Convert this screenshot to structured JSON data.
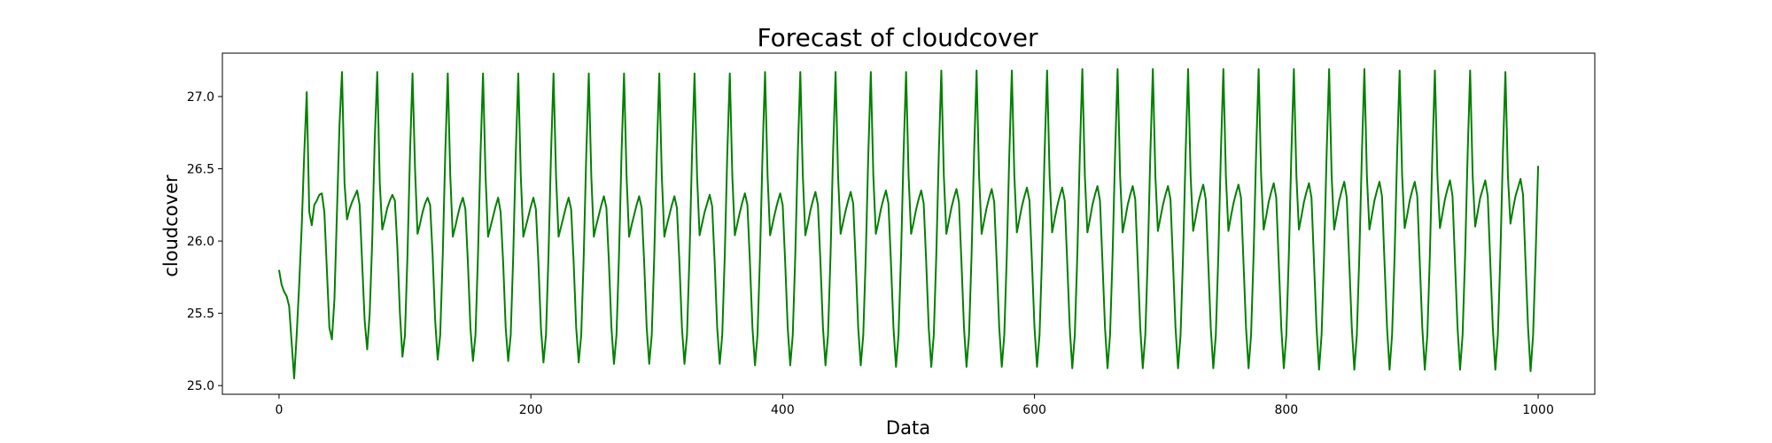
{
  "chart_data": {
    "type": "line",
    "title": "Forecast of cloudcover",
    "xlabel": "Data",
    "ylabel": "cloudcover",
    "xlim": [
      -45,
      1045
    ],
    "ylim": [
      24.94,
      27.3
    ],
    "xticks": [
      0,
      200,
      400,
      600,
      800,
      1000
    ],
    "xtick_labels": [
      "0",
      "200",
      "400",
      "600",
      "800",
      "1000"
    ],
    "yticks": [
      25.0,
      25.5,
      26.0,
      26.5,
      27.0
    ],
    "ytick_labels": [
      "25.0",
      "25.5",
      "26.0",
      "26.5",
      "27.0"
    ],
    "grid": false,
    "legend": false,
    "series": [
      {
        "color": "#008000",
        "x": [
          0,
          2,
          4,
          6,
          8,
          10,
          12,
          14,
          16,
          18,
          20,
          22,
          24,
          26,
          28,
          30,
          32,
          34,
          36,
          38,
          40,
          42,
          44,
          46,
          48,
          50,
          52,
          54,
          56,
          58,
          60,
          62,
          64,
          66,
          68,
          70,
          72,
          74,
          76,
          78,
          80,
          82,
          84,
          86,
          88,
          90,
          92,
          94,
          96,
          98,
          100,
          102,
          104,
          106,
          108,
          110,
          112,
          114,
          116,
          118,
          120,
          122,
          124,
          126,
          128,
          130,
          132,
          134,
          136,
          138,
          140,
          142,
          144,
          146,
          148,
          150,
          152,
          154,
          156,
          158,
          160,
          162,
          164,
          166,
          168,
          170,
          172,
          174,
          176,
          178,
          180,
          182,
          184,
          186,
          188,
          190,
          192,
          194,
          196,
          198,
          200,
          202,
          204,
          206,
          208,
          210,
          212,
          214,
          216,
          218,
          220,
          222,
          224,
          226,
          228,
          230,
          232,
          234,
          236,
          238,
          240,
          242,
          244,
          246,
          248,
          250,
          252,
          254,
          256,
          258,
          260,
          262,
          264,
          266,
          268,
          270,
          272,
          274,
          276,
          278,
          280,
          282,
          284,
          286,
          288,
          290,
          292,
          294,
          296,
          298,
          300,
          302,
          304,
          306,
          308,
          310,
          312,
          314,
          316,
          318,
          320,
          322,
          324,
          326,
          328,
          330,
          332,
          334,
          336,
          338,
          340,
          342,
          344,
          346,
          348,
          350,
          352,
          354,
          356,
          358,
          360,
          362,
          364,
          366,
          368,
          370,
          372,
          374,
          376,
          378,
          380,
          382,
          384,
          386,
          388,
          390,
          392,
          394,
          396,
          398,
          400,
          402,
          404,
          406,
          408,
          410,
          412,
          414,
          416,
          418,
          420,
          422,
          424,
          426,
          428,
          430,
          432,
          434,
          436,
          438,
          440,
          442,
          444,
          446,
          448,
          450,
          452,
          454,
          456,
          458,
          460,
          462,
          464,
          466,
          468,
          470,
          472,
          474,
          476,
          478,
          480,
          482,
          484,
          486,
          488,
          490,
          492,
          494,
          496,
          498,
          500,
          502,
          504,
          506,
          508,
          510,
          512,
          514,
          516,
          518,
          520,
          522,
          524,
          526,
          528,
          530,
          532,
          534,
          536,
          538,
          540,
          542,
          544,
          546,
          548,
          550,
          552,
          554,
          556,
          558,
          560,
          562,
          564,
          566,
          568,
          570,
          572,
          574,
          576,
          578,
          580,
          582,
          584,
          586,
          588,
          590,
          592,
          594,
          596,
          598,
          600,
          602,
          604,
          606,
          608,
          610,
          612,
          614,
          616,
          618,
          620,
          622,
          624,
          626,
          628,
          630,
          632,
          634,
          636,
          638,
          640,
          642,
          644,
          646,
          648,
          650,
          652,
          654,
          656,
          658,
          660,
          662,
          664,
          666,
          668,
          670,
          672,
          674,
          676,
          678,
          680,
          682,
          684,
          686,
          688,
          690,
          692,
          694,
          696,
          698,
          700,
          702,
          704,
          706,
          708,
          710,
          712,
          714,
          716,
          718,
          720,
          722,
          724,
          726,
          728,
          730,
          732,
          734,
          736,
          738,
          740,
          742,
          744,
          746,
          748,
          750,
          752,
          754,
          756,
          758,
          760,
          762,
          764,
          766,
          768,
          770,
          772,
          774,
          776,
          778,
          780,
          782,
          784,
          786,
          788,
          790,
          792,
          794,
          796,
          798,
          800,
          802,
          804,
          806,
          808,
          810,
          812,
          814,
          816,
          818,
          820,
          822,
          824,
          826,
          828,
          830,
          832,
          834,
          836,
          838,
          840,
          842,
          844,
          846,
          848,
          850,
          852,
          854,
          856,
          858,
          860,
          862,
          864,
          866,
          868,
          870,
          872,
          874,
          876,
          878,
          880,
          882,
          884,
          886,
          888,
          890,
          892,
          894,
          896,
          898,
          900,
          902,
          904,
          906,
          908,
          910,
          912,
          914,
          916,
          918,
          920,
          922,
          924,
          926,
          928,
          930,
          932,
          934,
          936,
          938,
          940,
          942,
          944,
          946,
          948,
          950,
          952,
          954,
          956,
          958,
          960,
          962,
          964,
          966,
          968,
          970,
          972,
          974,
          976,
          978,
          980,
          982,
          984,
          986,
          988,
          990,
          992,
          994,
          996,
          998,
          1000
        ],
        "y": [
          25.8,
          25.7,
          25.65,
          25.62,
          25.55,
          25.3,
          25.05,
          25.35,
          25.7,
          26.1,
          26.6,
          27.03,
          26.2,
          26.11,
          26.25,
          26.28,
          26.32,
          26.33,
          26.2,
          25.8,
          25.4,
          25.32,
          25.6,
          26.2,
          26.8,
          27.17,
          26.4,
          26.15,
          26.22,
          26.27,
          26.31,
          26.35,
          26.25,
          25.85,
          25.45,
          25.25,
          25.5,
          26.0,
          26.7,
          27.17,
          26.4,
          26.08,
          26.15,
          26.23,
          26.28,
          26.32,
          26.28,
          25.95,
          25.5,
          25.2,
          25.35,
          25.9,
          26.6,
          27.16,
          26.5,
          26.05,
          26.12,
          26.2,
          26.26,
          26.3,
          26.25,
          25.9,
          25.45,
          25.18,
          25.35,
          25.9,
          26.6,
          27.16,
          26.45,
          26.03,
          26.1,
          26.18,
          26.25,
          26.3,
          26.22,
          25.85,
          25.4,
          25.17,
          25.35,
          25.9,
          26.6,
          27.16,
          26.45,
          26.03,
          26.1,
          26.17,
          26.24,
          26.3,
          26.2,
          25.85,
          25.4,
          25.17,
          25.35,
          25.9,
          26.6,
          27.16,
          26.45,
          26.03,
          26.1,
          26.17,
          26.24,
          26.3,
          26.22,
          25.85,
          25.4,
          25.16,
          25.35,
          25.9,
          26.6,
          27.16,
          26.45,
          26.03,
          26.1,
          26.17,
          26.24,
          26.3,
          26.22,
          25.85,
          25.4,
          25.16,
          25.35,
          25.9,
          26.6,
          27.16,
          26.45,
          26.03,
          26.11,
          26.18,
          26.25,
          26.31,
          26.23,
          25.85,
          25.4,
          25.15,
          25.35,
          25.9,
          26.6,
          27.16,
          26.45,
          26.03,
          26.11,
          26.18,
          26.25,
          26.31,
          26.23,
          25.85,
          25.4,
          25.15,
          25.35,
          25.9,
          26.6,
          27.16,
          26.45,
          26.03,
          26.11,
          26.18,
          26.25,
          26.31,
          26.23,
          25.85,
          25.4,
          25.15,
          25.35,
          25.9,
          26.6,
          27.16,
          26.45,
          26.04,
          26.12,
          26.2,
          26.26,
          26.32,
          26.24,
          25.85,
          25.4,
          25.15,
          25.35,
          25.9,
          26.6,
          27.16,
          26.45,
          26.04,
          26.12,
          26.2,
          26.27,
          26.33,
          26.25,
          25.85,
          25.4,
          25.14,
          25.35,
          25.9,
          26.6,
          27.17,
          26.45,
          26.04,
          26.12,
          26.2,
          26.27,
          26.33,
          26.25,
          25.85,
          25.4,
          25.14,
          25.35,
          25.9,
          26.6,
          27.17,
          26.45,
          26.04,
          26.12,
          26.21,
          26.28,
          26.34,
          26.25,
          25.85,
          25.4,
          25.14,
          25.35,
          25.9,
          26.6,
          27.17,
          26.45,
          26.05,
          26.13,
          26.21,
          26.28,
          26.34,
          26.26,
          25.85,
          25.4,
          25.14,
          25.35,
          25.9,
          26.6,
          27.17,
          26.45,
          26.05,
          26.13,
          26.22,
          26.29,
          26.35,
          26.26,
          25.85,
          25.4,
          25.13,
          25.35,
          25.9,
          26.6,
          27.17,
          26.45,
          26.05,
          26.13,
          26.22,
          26.29,
          26.35,
          26.26,
          25.85,
          25.4,
          25.13,
          25.35,
          25.9,
          26.6,
          27.18,
          26.45,
          26.05,
          26.14,
          26.23,
          26.3,
          26.36,
          26.27,
          25.85,
          25.4,
          25.13,
          25.35,
          25.9,
          26.6,
          27.18,
          26.45,
          26.05,
          26.14,
          26.23,
          26.3,
          26.36,
          26.27,
          25.85,
          25.4,
          25.13,
          25.35,
          25.9,
          26.6,
          27.18,
          26.45,
          26.06,
          26.15,
          26.24,
          26.31,
          26.37,
          26.28,
          25.85,
          25.4,
          25.13,
          25.35,
          25.9,
          26.6,
          27.18,
          26.45,
          26.06,
          26.15,
          26.24,
          26.31,
          26.37,
          26.28,
          25.85,
          25.4,
          25.12,
          25.35,
          25.9,
          26.6,
          27.19,
          26.45,
          26.06,
          26.15,
          26.25,
          26.32,
          26.38,
          26.28,
          25.85,
          25.4,
          25.12,
          25.35,
          25.9,
          26.6,
          27.19,
          26.45,
          26.06,
          26.15,
          26.25,
          26.32,
          26.38,
          26.29,
          25.85,
          25.4,
          25.12,
          25.35,
          25.9,
          26.6,
          27.19,
          26.45,
          26.07,
          26.16,
          26.25,
          26.32,
          26.38,
          26.29,
          25.85,
          25.4,
          25.12,
          25.35,
          25.9,
          26.6,
          27.19,
          26.45,
          26.07,
          26.16,
          26.26,
          26.33,
          26.39,
          26.29,
          25.85,
          25.4,
          25.12,
          25.35,
          25.9,
          26.6,
          27.19,
          26.45,
          26.07,
          26.17,
          26.26,
          26.33,
          26.39,
          26.3,
          25.85,
          25.4,
          25.12,
          25.35,
          25.9,
          26.6,
          27.19,
          26.45,
          26.08,
          26.17,
          26.27,
          26.34,
          26.4,
          26.3,
          25.85,
          25.4,
          25.12,
          25.35,
          25.9,
          26.6,
          27.19,
          26.45,
          26.08,
          26.17,
          26.27,
          26.34,
          26.4,
          26.3,
          25.85,
          25.4,
          25.11,
          25.35,
          25.9,
          26.6,
          27.19,
          26.45,
          26.08,
          26.18,
          26.28,
          26.35,
          26.41,
          26.3,
          25.85,
          25.4,
          25.11,
          25.35,
          25.9,
          26.6,
          27.19,
          26.45,
          26.08,
          26.18,
          26.28,
          26.35,
          26.41,
          26.31,
          25.85,
          25.4,
          25.11,
          25.35,
          25.9,
          26.6,
          27.18,
          26.45,
          26.09,
          26.18,
          26.28,
          26.35,
          26.41,
          26.31,
          25.85,
          25.4,
          25.11,
          25.35,
          25.9,
          26.6,
          27.18,
          26.45,
          26.09,
          26.19,
          26.29,
          26.36,
          26.42,
          26.31,
          25.85,
          25.4,
          25.11,
          25.35,
          25.9,
          26.6,
          27.18,
          26.45,
          26.1,
          26.2,
          26.3,
          26.36,
          26.42,
          26.31,
          25.85,
          25.4,
          25.11,
          25.35,
          25.9,
          26.6,
          27.17,
          26.45,
          26.12,
          26.22,
          26.31,
          26.37,
          26.43,
          26.32,
          25.85,
          25.4,
          25.1,
          25.35,
          25.9,
          26.52
        ]
      }
    ]
  }
}
